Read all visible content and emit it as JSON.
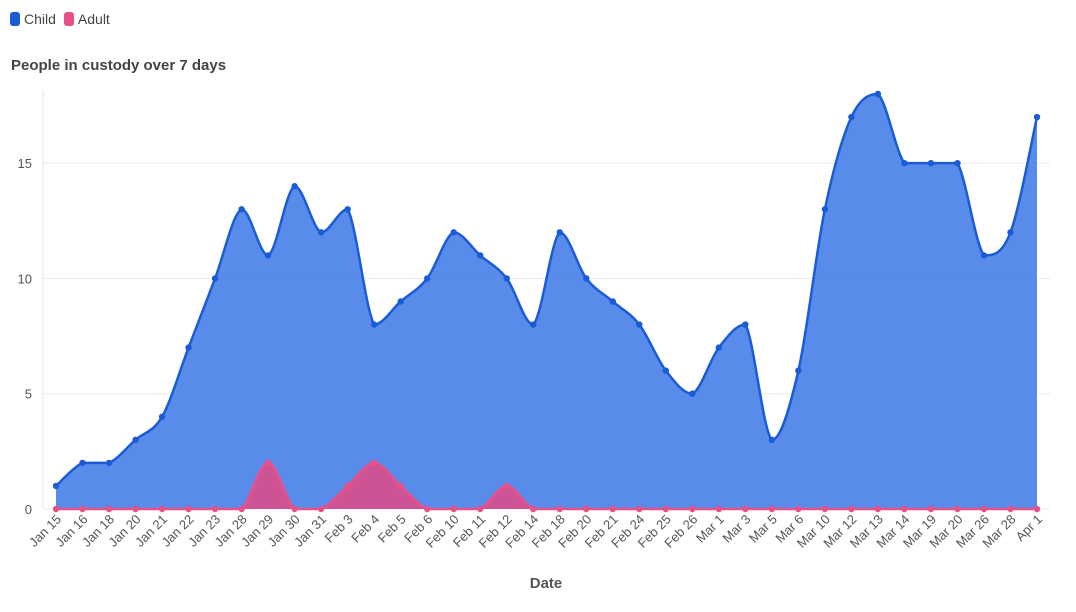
{
  "chart_data": {
    "type": "area",
    "title": "People in custody over 7 days",
    "xlabel": "Date",
    "ylabel": "",
    "ylim": [
      0,
      18
    ],
    "yticks": [
      0,
      5,
      10,
      15
    ],
    "legend_position": "top-left",
    "grid": true,
    "categories": [
      "Jan 15",
      "Jan 16",
      "Jan 18",
      "Jan 20",
      "Jan 21",
      "Jan 22",
      "Jan 23",
      "Jan 28",
      "Jan 29",
      "Jan 30",
      "Jan 31",
      "Feb 3",
      "Feb 4",
      "Feb 5",
      "Feb 6",
      "Feb 10",
      "Feb 11",
      "Feb 12",
      "Feb 14",
      "Feb 18",
      "Feb 20",
      "Feb 21",
      "Feb 24",
      "Feb 25",
      "Feb 26",
      "Mar 1",
      "Mar 3",
      "Mar 5",
      "Mar 6",
      "Mar 10",
      "Mar 12",
      "Mar 13",
      "Mar 14",
      "Mar 19",
      "Mar 20",
      "Mar 26",
      "Mar 28",
      "Apr 1"
    ],
    "series": [
      {
        "name": "Child",
        "color": "#1a5bd6",
        "fill": "#4b82e8",
        "values": [
          1,
          2,
          2,
          3,
          4,
          7,
          10,
          13,
          11,
          14,
          12,
          13,
          8,
          9,
          10,
          12,
          11,
          10,
          8,
          12,
          10,
          9,
          8,
          6,
          5,
          7,
          8,
          3,
          6,
          13,
          17,
          18,
          15,
          15,
          15,
          11,
          12,
          17
        ]
      },
      {
        "name": "Adult",
        "color": "#e8508a",
        "fill": "#d4508f",
        "values": [
          0,
          0,
          0,
          0,
          0,
          0,
          0,
          0,
          2,
          0,
          0,
          1,
          2,
          1,
          0,
          0,
          0,
          1,
          0,
          0,
          0,
          0,
          0,
          0,
          0,
          0,
          0,
          0,
          0,
          0,
          0,
          0,
          0,
          0,
          0,
          0,
          0,
          0
        ]
      }
    ]
  }
}
